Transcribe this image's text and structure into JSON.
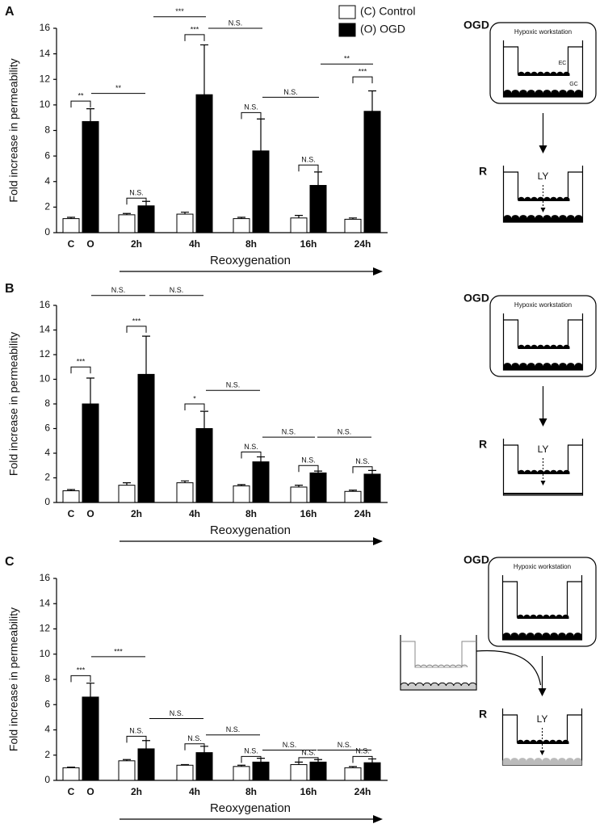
{
  "chart_data": [
    {
      "type": "bar",
      "panel": "A",
      "ylabel": "Fold increase in permeability",
      "xlabel": "Reoxygenation",
      "first_group_labels": [
        "C",
        "O"
      ],
      "categories": [
        null,
        "2h",
        "4h",
        "8h",
        "16h",
        "24h"
      ],
      "series": [
        {
          "name": "(C) Control",
          "color": "#ffffff",
          "values": [
            1.1,
            1.4,
            1.45,
            1.1,
            1.15,
            1.05
          ],
          "errors": [
            0.1,
            0.1,
            0.15,
            0.1,
            0.2,
            0.1
          ]
        },
        {
          "name": "(O) OGD",
          "color": "#000000",
          "values": [
            8.7,
            2.1,
            10.8,
            6.4,
            3.7,
            9.5
          ],
          "errors": [
            1.0,
            0.35,
            3.9,
            2.5,
            1.05,
            1.6
          ]
        }
      ],
      "ylim": [
        0,
        16
      ],
      "yticks": [
        0,
        2,
        4,
        6,
        8,
        10,
        12,
        14,
        16
      ],
      "annotations": [
        "**",
        "**",
        "N.S.",
        "***",
        "***",
        "N.S.",
        "N.S.",
        "N.S.",
        "N.S.",
        "**",
        "***"
      ],
      "diagram": {
        "step1": "OGD",
        "step2": "R",
        "chamber": "Hypoxic workstation",
        "dye": "LY",
        "top_cells": "EC",
        "bottom_cells": "GC"
      }
    },
    {
      "type": "bar",
      "panel": "B",
      "ylabel": "Fold increase in permeability",
      "xlabel": "Reoxygenation",
      "first_group_labels": [
        "C",
        "O"
      ],
      "categories": [
        null,
        "2h",
        "4h",
        "8h",
        "16h",
        "24h"
      ],
      "series": [
        {
          "color": "#ffffff",
          "values": [
            0.95,
            1.4,
            1.6,
            1.35,
            1.25,
            0.9
          ],
          "errors": [
            0.1,
            0.2,
            0.15,
            0.1,
            0.15,
            0.1
          ]
        },
        {
          "color": "#000000",
          "values": [
            8.0,
            10.4,
            6.0,
            3.3,
            2.4,
            2.3
          ],
          "errors": [
            2.1,
            3.1,
            1.4,
            0.4,
            0.15,
            0.3
          ]
        }
      ],
      "ylim": [
        0,
        16
      ],
      "yticks": [
        0,
        2,
        4,
        6,
        8,
        10,
        12,
        14,
        16
      ],
      "annotations": [
        "***",
        "N.S.",
        "N.S.",
        "***",
        "*",
        "N.S.",
        "N.S.",
        "N.S.",
        "N.S.",
        "N.S.",
        "N.S."
      ],
      "diagram": {
        "step1": "OGD",
        "step2": "R",
        "chamber": "Hypoxic workstation",
        "dye": "LY"
      }
    },
    {
      "type": "bar",
      "panel": "C",
      "ylabel": "Fold increase in permeability",
      "xlabel": "Reoxygenation",
      "first_group_labels": [
        "C",
        "O"
      ],
      "categories": [
        null,
        "2h",
        "4h",
        "8h",
        "16h",
        "24h"
      ],
      "series": [
        {
          "color": "#ffffff",
          "values": [
            1.0,
            1.55,
            1.2,
            1.1,
            1.25,
            1.0
          ],
          "errors": [
            0.05,
            0.1,
            0.05,
            0.1,
            0.2,
            0.1
          ]
        },
        {
          "color": "#000000",
          "values": [
            6.6,
            2.5,
            2.2,
            1.45,
            1.45,
            1.4
          ],
          "errors": [
            1.1,
            0.65,
            0.5,
            0.3,
            0.2,
            0.3
          ]
        }
      ],
      "ylim": [
        0,
        16
      ],
      "yticks": [
        0,
        2,
        4,
        6,
        8,
        10,
        12,
        14,
        16
      ],
      "annotations": [
        "***",
        "***",
        "N.S.",
        "N.S.",
        "N.S.",
        "N.S.",
        "N.S.",
        "N.S.",
        "N.S.",
        "N.S.",
        "N.S."
      ],
      "diagram": {
        "step1": "OGD",
        "step2": "R",
        "chamber": "Hypoxic workstation",
        "dye": "LY"
      }
    }
  ]
}
